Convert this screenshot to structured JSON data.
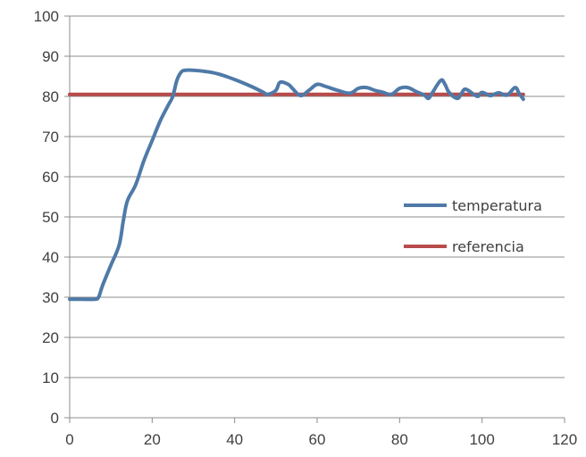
{
  "chart_data": {
    "type": "line",
    "title": "",
    "xlabel": "",
    "ylabel": "",
    "xlim": [
      0,
      120
    ],
    "ylim": [
      0,
      100
    ],
    "x_ticks": [
      0,
      20,
      40,
      60,
      80,
      100,
      120
    ],
    "y_ticks": [
      0,
      10,
      20,
      30,
      40,
      50,
      60,
      70,
      80,
      90,
      100
    ],
    "grid": "horizontal",
    "legend_position": "right",
    "series": [
      {
        "name": "temperatura",
        "color": "#4f7aa8",
        "x": [
          0,
          3,
          6,
          7,
          8,
          10,
          12,
          13,
          14,
          16,
          18,
          20,
          22,
          24,
          25,
          26,
          27,
          28,
          30,
          33,
          36,
          40,
          44,
          47,
          48,
          50,
          51,
          53,
          54,
          56,
          58,
          60,
          62,
          65,
          68,
          70,
          72,
          74,
          76,
          78,
          80,
          82,
          84,
          86,
          87,
          88,
          90,
          91,
          92,
          94,
          95,
          96,
          98,
          99,
          100,
          102,
          104,
          106,
          108,
          109,
          110
        ],
        "y": [
          29.5,
          29.5,
          29.5,
          30,
          33,
          38,
          43,
          49,
          54,
          58,
          64,
          69,
          74,
          78,
          80,
          84,
          86,
          86.5,
          86.5,
          86.2,
          85.6,
          84.2,
          82.5,
          81,
          80.5,
          81.5,
          83.5,
          83,
          82,
          80.2,
          81.5,
          83,
          82.5,
          81.5,
          80.8,
          82,
          82.2,
          81.5,
          81,
          80.5,
          82,
          82.2,
          81.2,
          80.3,
          79.5,
          81,
          84,
          83,
          81,
          79.5,
          80.8,
          81.8,
          80.5,
          80,
          81,
          80.2,
          80.9,
          80.3,
          82.2,
          80.7,
          79.3
        ]
      },
      {
        "name": "referencia",
        "color": "#b84b4b",
        "x": [
          0,
          110
        ],
        "y": [
          80.5,
          80.5
        ]
      }
    ]
  }
}
